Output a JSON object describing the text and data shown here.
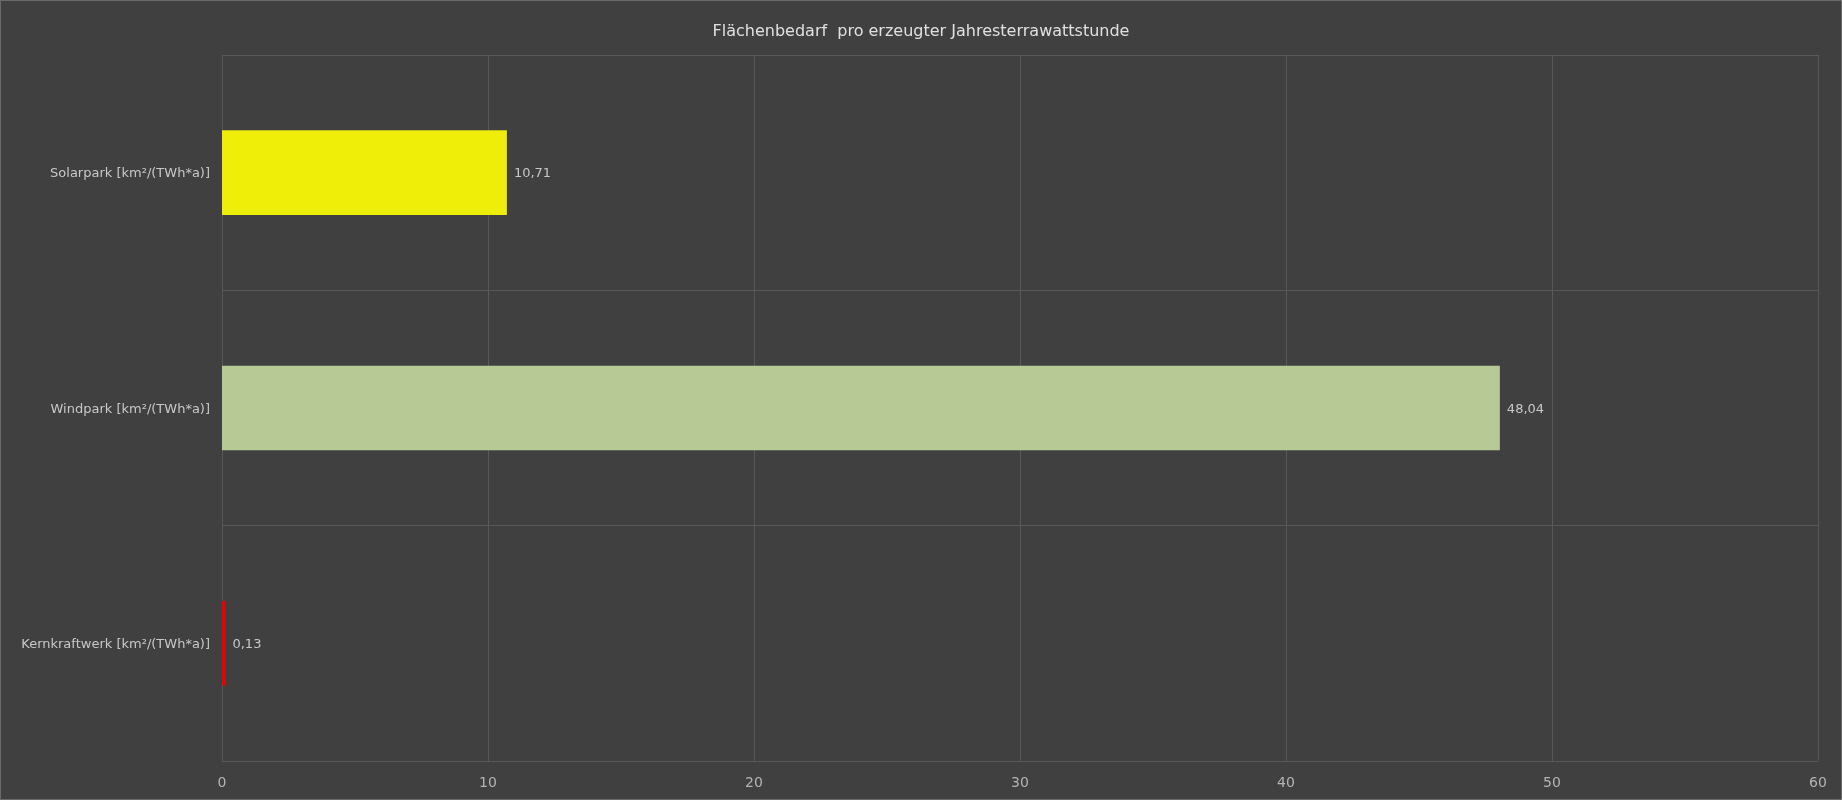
{
  "chart_data": {
    "type": "bar",
    "orientation": "horizontal",
    "title": "Flächenbedarf  pro erzeugter Jahresterrawattstunde",
    "categories": [
      "Solarpark [km²/(TWh*a)]",
      "Windpark [km²/(TWh*a)]",
      "Kernkraftwerk [km²/(TWh*a)]"
    ],
    "values": [
      10.71,
      48.04,
      0.13
    ],
    "colors": [
      "#eeee08",
      "#b7c994",
      "#ee0000"
    ],
    "value_labels": [
      "10,71",
      "48,04",
      "0,13"
    ],
    "xlim": [
      0,
      60
    ],
    "xticks": [
      0,
      10,
      20,
      30,
      40,
      50,
      60
    ],
    "grid": true
  }
}
